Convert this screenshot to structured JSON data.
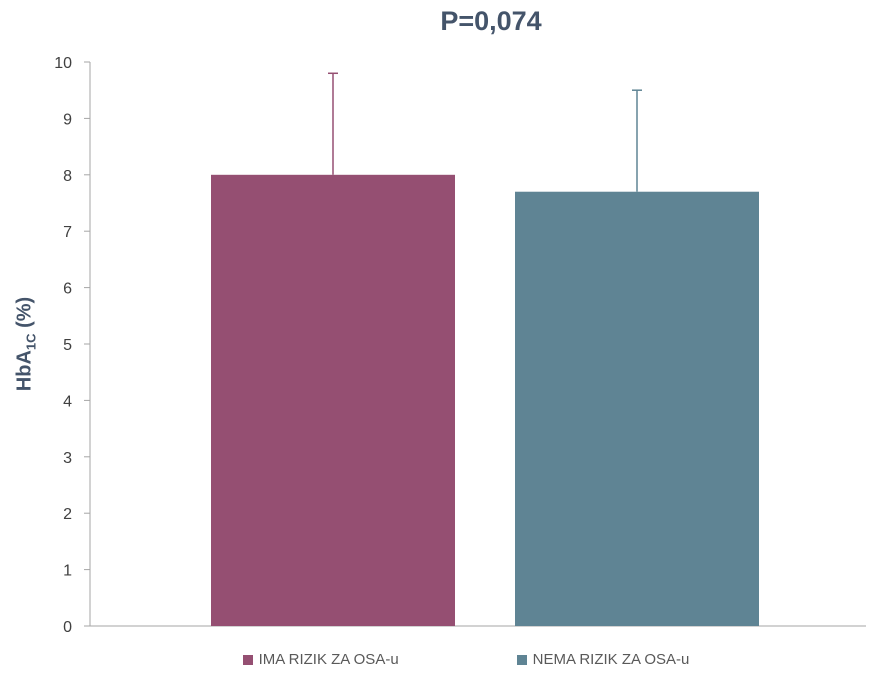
{
  "chart_data": {
    "type": "bar",
    "title": "P=0,074",
    "ylabel_main": "HbA",
    "ylabel_sub": "1C",
    "ylabel_tail": " (%)",
    "xlabel": "",
    "ylim": [
      0,
      10
    ],
    "yticks": [
      0,
      1,
      2,
      3,
      4,
      5,
      6,
      7,
      8,
      9,
      10
    ],
    "grid": false,
    "legend_position": "bottom",
    "series": [
      {
        "name": "IMA RIZIK ZA OSA-u",
        "value": 8.0,
        "error": 1.8,
        "color": "#954f72"
      },
      {
        "name": "NEMA RIZIK ZA OSA-u",
        "value": 7.7,
        "error": 1.8,
        "color": "#5f8494"
      }
    ],
    "axis_color": "#a6a6a6",
    "tick_label_color": "#404040"
  }
}
